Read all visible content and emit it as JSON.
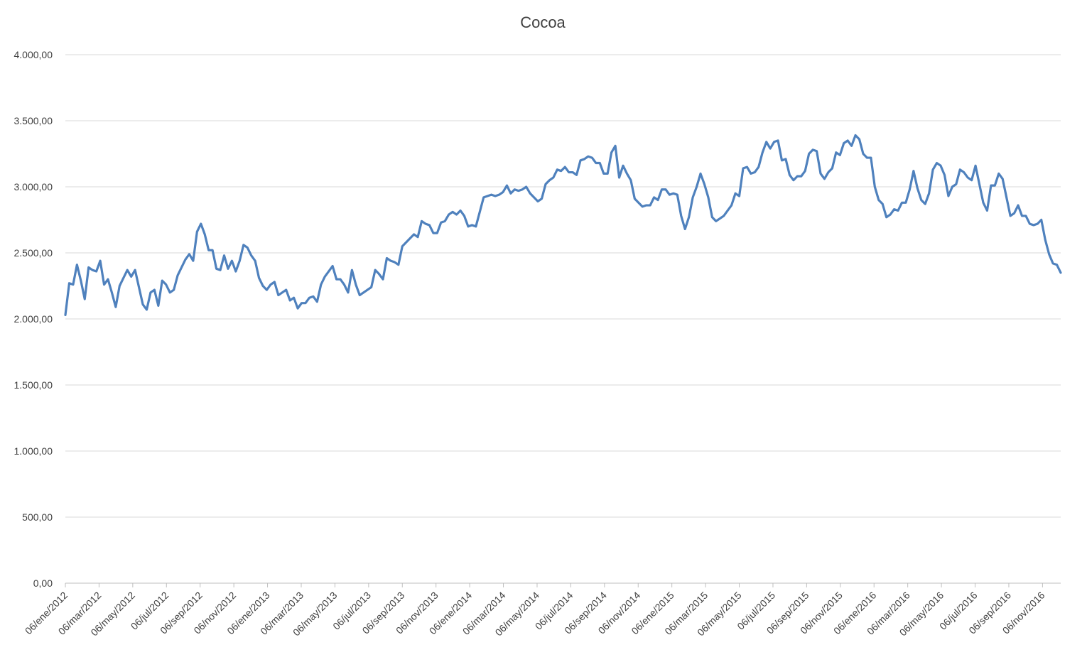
{
  "chart_data": {
    "type": "line",
    "title": "Cocoa",
    "xlabel": "",
    "ylabel": "",
    "ylim": [
      0,
      4000
    ],
    "y_ticks": [
      "0,00",
      "500,00",
      "1.000,00",
      "1.500,00",
      "2.000,00",
      "2.500,00",
      "3.000,00",
      "3.500,00",
      "4.000,00"
    ],
    "y_tick_values": [
      0,
      500,
      1000,
      1500,
      2000,
      2500,
      3000,
      3500,
      4000
    ],
    "x_ticks": [
      "06/ene/2012",
      "06/mar/2012",
      "06/may/2012",
      "06/jul/2012",
      "06/sep/2012",
      "06/nov/2012",
      "06/ene/2013",
      "06/mar/2013",
      "06/may/2013",
      "06/jul/2013",
      "06/sep/2013",
      "06/nov/2013",
      "06/ene/2014",
      "06/mar/2014",
      "06/may/2014",
      "06/jul/2014",
      "06/sep/2014",
      "06/nov/2014",
      "06/ene/2015",
      "06/mar/2015",
      "06/may/2015",
      "06/jul/2015",
      "06/sep/2015",
      "06/nov/2015",
      "06/ene/2016",
      "06/mar/2016",
      "06/may/2016",
      "06/jul/2016",
      "06/sep/2016",
      "06/nov/2016"
    ],
    "grid": true,
    "legend": "none",
    "series_color": "#4f81bd",
    "series": [
      {
        "values": [
          2030,
          2270,
          2260,
          2410,
          2290,
          2150,
          2390,
          2370,
          2360,
          2440,
          2260,
          2300,
          2200,
          2090,
          2250,
          2310,
          2370,
          2320,
          2370,
          2240,
          2110,
          2070,
          2200,
          2220,
          2100,
          2290,
          2260,
          2200,
          2220,
          2330,
          2390,
          2450,
          2490,
          2440,
          2660,
          2720,
          2640,
          2520,
          2520,
          2380,
          2370,
          2480,
          2380,
          2440,
          2360,
          2440,
          2560,
          2540,
          2480,
          2440,
          2310,
          2250,
          2220,
          2260,
          2280,
          2180,
          2200,
          2220,
          2140,
          2160,
          2080,
          2120,
          2120,
          2160,
          2170,
          2130,
          2260,
          2320,
          2360,
          2400,
          2300,
          2300,
          2260,
          2200,
          2370,
          2260,
          2180,
          2200,
          2220,
          2240,
          2370,
          2340,
          2300,
          2460,
          2440,
          2430,
          2410,
          2550,
          2580,
          2610,
          2640,
          2620,
          2740,
          2720,
          2710,
          2650,
          2650,
          2730,
          2740,
          2790,
          2810,
          2790,
          2820,
          2780,
          2700,
          2710,
          2700,
          2810,
          2920,
          2930,
          2940,
          2930,
          2940,
          2960,
          3010,
          2950,
          2980,
          2970,
          2980,
          3000,
          2950,
          2920,
          2890,
          2910,
          3020,
          3050,
          3070,
          3130,
          3120,
          3150,
          3110,
          3110,
          3090,
          3200,
          3210,
          3230,
          3220,
          3180,
          3180,
          3100,
          3100,
          3260,
          3310,
          3070,
          3160,
          3100,
          3050,
          2910,
          2880,
          2850,
          2860,
          2860,
          2920,
          2900,
          2980,
          2980,
          2940,
          2950,
          2940,
          2780,
          2680,
          2770,
          2920,
          3000,
          3100,
          3020,
          2920,
          2770,
          2740,
          2760,
          2780,
          2820,
          2860,
          2950,
          2930,
          3140,
          3150,
          3100,
          3110,
          3150,
          3260,
          3340,
          3290,
          3340,
          3350,
          3200,
          3210,
          3090,
          3050,
          3080,
          3080,
          3120,
          3250,
          3280,
          3270,
          3100,
          3060,
          3110,
          3140,
          3260,
          3240,
          3330,
          3350,
          3310,
          3390,
          3360,
          3250,
          3220,
          3220,
          3000,
          2900,
          2870,
          2770,
          2790,
          2830,
          2820,
          2880,
          2880,
          2980,
          3120,
          2990,
          2900,
          2870,
          2950,
          3130,
          3180,
          3160,
          3090,
          2930,
          3000,
          3020,
          3130,
          3110,
          3070,
          3050,
          3160,
          3020,
          2880,
          2820,
          3010,
          3010,
          3100,
          3060,
          2920,
          2780,
          2800,
          2860,
          2780,
          2780,
          2720,
          2710,
          2720,
          2750,
          2600,
          2490,
          2420,
          2410,
          2350
        ]
      }
    ]
  }
}
